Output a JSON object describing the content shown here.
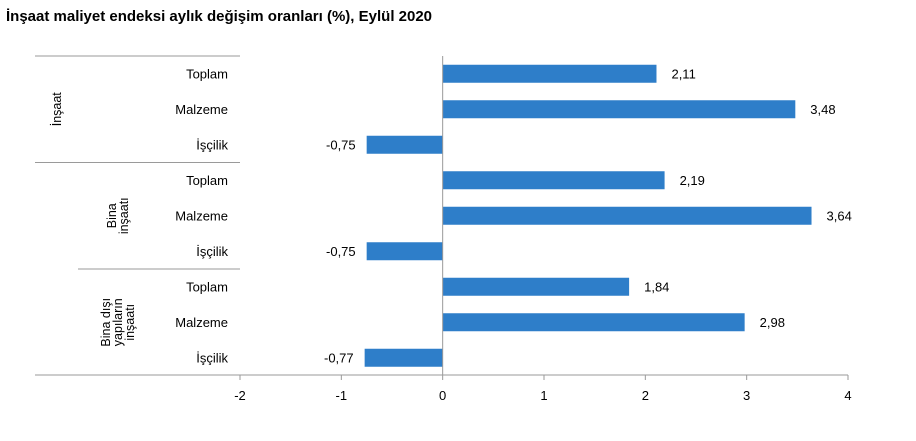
{
  "chart_data": {
    "type": "bar",
    "orientation": "horizontal",
    "title": "İnşaat maliyet endeksi aylık değişim oranları (%), Eylül 2020",
    "xlabel": "",
    "ylabel": "",
    "xlim": [
      -2,
      4
    ],
    "xticks": [
      "-2",
      "-1",
      "0",
      "1",
      "2",
      "3",
      "4"
    ],
    "grid": false,
    "bar_color": "#2e7ec9",
    "groups": [
      {
        "label_lines": [
          "İnşaat"
        ],
        "items": [
          {
            "category": "Toplam",
            "value": 2.11,
            "value_label": "2,11"
          },
          {
            "category": "Malzeme",
            "value": 3.48,
            "value_label": "3,48"
          },
          {
            "category": "İşçilik",
            "value": -0.75,
            "value_label": "-0,75"
          }
        ]
      },
      {
        "label_lines": [
          "Bina",
          "inşaatı"
        ],
        "items": [
          {
            "category": "Toplam",
            "value": 2.19,
            "value_label": "2,19"
          },
          {
            "category": "Malzeme",
            "value": 3.64,
            "value_label": "3,64"
          },
          {
            "category": "İşçilik",
            "value": -0.75,
            "value_label": "-0,75"
          }
        ]
      },
      {
        "label_lines": [
          "Bina dışı",
          "yapıların",
          "inşaatı"
        ],
        "items": [
          {
            "category": "Toplam",
            "value": 1.84,
            "value_label": "1,84"
          },
          {
            "category": "Malzeme",
            "value": 2.98,
            "value_label": "2,98"
          },
          {
            "category": "İşçilik",
            "value": -0.77,
            "value_label": "-0,77"
          }
        ]
      }
    ]
  }
}
